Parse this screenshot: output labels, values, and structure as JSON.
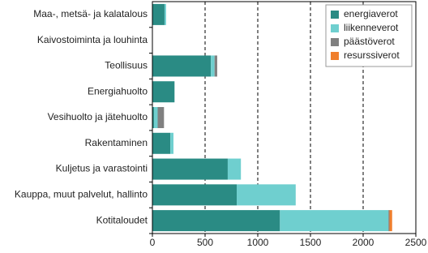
{
  "chart_data": {
    "type": "stacked-barh",
    "categories": [
      "Maa-, metsä- ja kalatalous",
      "Kaivostoiminta ja louhinta",
      "Teollisuus",
      "Energiahuolto",
      "Vesihuolto ja jätehuolto",
      "Rakentaminen",
      "Kuljetus ja varastointi",
      "Kauppa, muut palvelut, hallinto",
      "Kotitaloudet"
    ],
    "series": [
      {
        "name": "energiaverot",
        "color": "#2a8b84",
        "values": [
          115,
          0,
          555,
          210,
          15,
          170,
          715,
          800,
          1210
        ]
      },
      {
        "name": "liikenneverot",
        "color": "#6fcfcf",
        "values": [
          15,
          0,
          35,
          0,
          35,
          30,
          125,
          560,
          1030
        ]
      },
      {
        "name": "päästöverot",
        "color": "#808080",
        "values": [
          0,
          0,
          25,
          0,
          60,
          0,
          0,
          0,
          10
        ]
      },
      {
        "name": "resurssiverot",
        "color": "#f07f2d",
        "values": [
          0,
          0,
          0,
          0,
          0,
          0,
          0,
          0,
          25
        ]
      }
    ],
    "xlim": [
      0,
      2500
    ],
    "xticks": [
      0,
      500,
      1000,
      1500,
      2000,
      2500
    ],
    "grid": true,
    "legend": "top-right"
  }
}
